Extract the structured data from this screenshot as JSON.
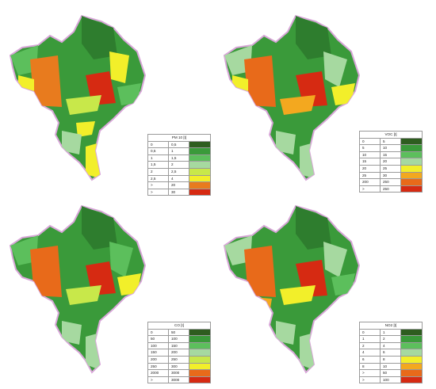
{
  "panels": [
    {
      "id": "pm10",
      "legend_title": "PM 10 [t]",
      "legend_rows": [
        {
          "from": "0",
          "to": "0,5",
          "color": "#2e5d1f"
        },
        {
          "from": "0,5",
          "to": "1",
          "color": "#3a9a3a"
        },
        {
          "from": "1",
          "to": "1,5",
          "color": "#5cbf5c"
        },
        {
          "from": "1,5",
          "to": "2",
          "color": "#a6d9a0"
        },
        {
          "from": "2",
          "to": "2,5",
          "color": "#c8e84a"
        },
        {
          "from": "2,5",
          "to": "4",
          "color": "#f2ef2a"
        },
        {
          "from": ">",
          "to": "20",
          "color": "#e87b1e"
        },
        {
          "from": ">",
          "to": "30",
          "color": "#d62a12"
        }
      ]
    },
    {
      "id": "voc",
      "legend_title": "VOC [t]",
      "legend_rows": [
        {
          "from": "0",
          "to": "5",
          "color": "#2e5d1f"
        },
        {
          "from": "5",
          "to": "10",
          "color": "#3a9a3a"
        },
        {
          "from": "10",
          "to": "15",
          "color": "#5cbf5c"
        },
        {
          "from": "15",
          "to": "20",
          "color": "#a6d9a0"
        },
        {
          "from": "20",
          "to": "25",
          "color": "#f2ef2a"
        },
        {
          "from": "25",
          "to": "30",
          "color": "#f3a81f"
        },
        {
          "from": "200",
          "to": "250",
          "color": "#e86a1a"
        },
        {
          "from": ">",
          "to": "250",
          "color": "#d62a12"
        }
      ]
    },
    {
      "id": "co",
      "legend_title": "CO [t]",
      "legend_rows": [
        {
          "from": "0",
          "to": "50",
          "color": "#2e5d1f"
        },
        {
          "from": "50",
          "to": "100",
          "color": "#3a9a3a"
        },
        {
          "from": "100",
          "to": "150",
          "color": "#5cbf5c"
        },
        {
          "from": "150",
          "to": "200",
          "color": "#a6d9a0"
        },
        {
          "from": "200",
          "to": "250",
          "color": "#c8e84a"
        },
        {
          "from": "250",
          "to": "300",
          "color": "#f2ef2a"
        },
        {
          "from": "2000",
          "to": "3000",
          "color": "#e86a1a"
        },
        {
          "from": ">",
          "to": "3000",
          "color": "#d62a12"
        }
      ]
    },
    {
      "id": "no2",
      "legend_title": "NO2 [t]",
      "legend_rows": [
        {
          "from": "0",
          "to": "1",
          "color": "#2e5d1f"
        },
        {
          "from": "1",
          "to": "2",
          "color": "#3a9a3a"
        },
        {
          "from": "2",
          "to": "4",
          "color": "#5cbf5c"
        },
        {
          "from": "4",
          "to": "6",
          "color": "#a6d9a0"
        },
        {
          "from": "6",
          "to": "8",
          "color": "#f2ef2a"
        },
        {
          "from": "8",
          "to": "10",
          "color": "#f3a81f"
        },
        {
          "from": ">",
          "to": "50",
          "color": "#e86a1a"
        },
        {
          "from": ">",
          "to": "100",
          "color": "#d62a12"
        }
      ]
    }
  ]
}
